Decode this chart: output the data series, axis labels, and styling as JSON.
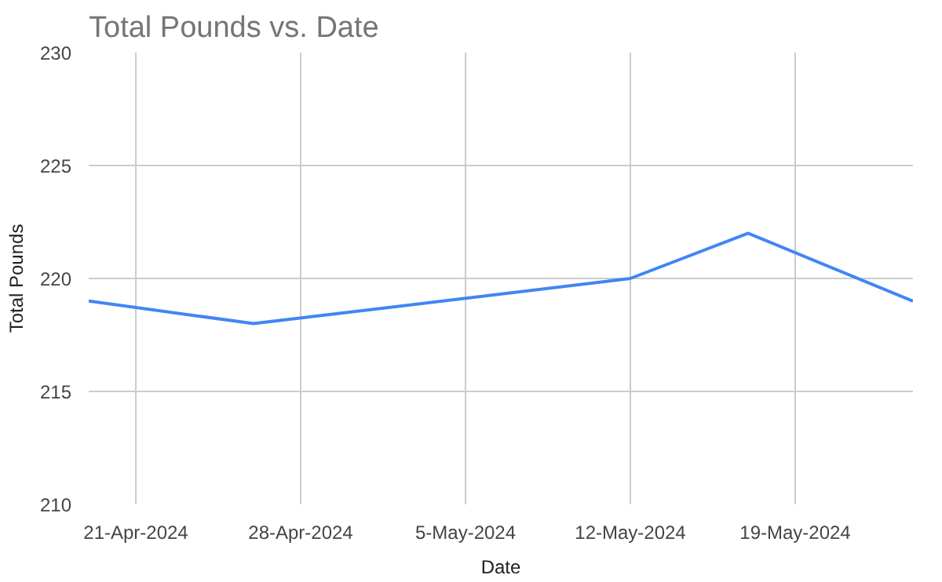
{
  "chart_data": {
    "type": "line",
    "title": "Total Pounds vs. Date",
    "xlabel": "Date",
    "ylabel": "Total Pounds",
    "x": [
      "2024-04-19",
      "2024-04-26",
      "2024-05-12",
      "2024-05-17",
      "2024-05-24"
    ],
    "series": [
      {
        "color": "#4285f4",
        "values": [
          219,
          218,
          220,
          222,
          219
        ]
      }
    ],
    "xlim": [
      "2024-04-19",
      "2024-05-24"
    ],
    "xticks": [
      {
        "value": "2024-04-21",
        "label": "21-Apr-2024"
      },
      {
        "value": "2024-04-28",
        "label": "28-Apr-2024"
      },
      {
        "value": "2024-05-05",
        "label": "5-May-2024"
      },
      {
        "value": "2024-05-12",
        "label": "12-May-2024"
      },
      {
        "value": "2024-05-19",
        "label": "19-May-2024"
      }
    ],
    "ylim": [
      210,
      230
    ],
    "yticks": [
      210,
      215,
      220,
      225,
      230
    ],
    "grid": true,
    "marker": "none",
    "line_style": "solid"
  }
}
